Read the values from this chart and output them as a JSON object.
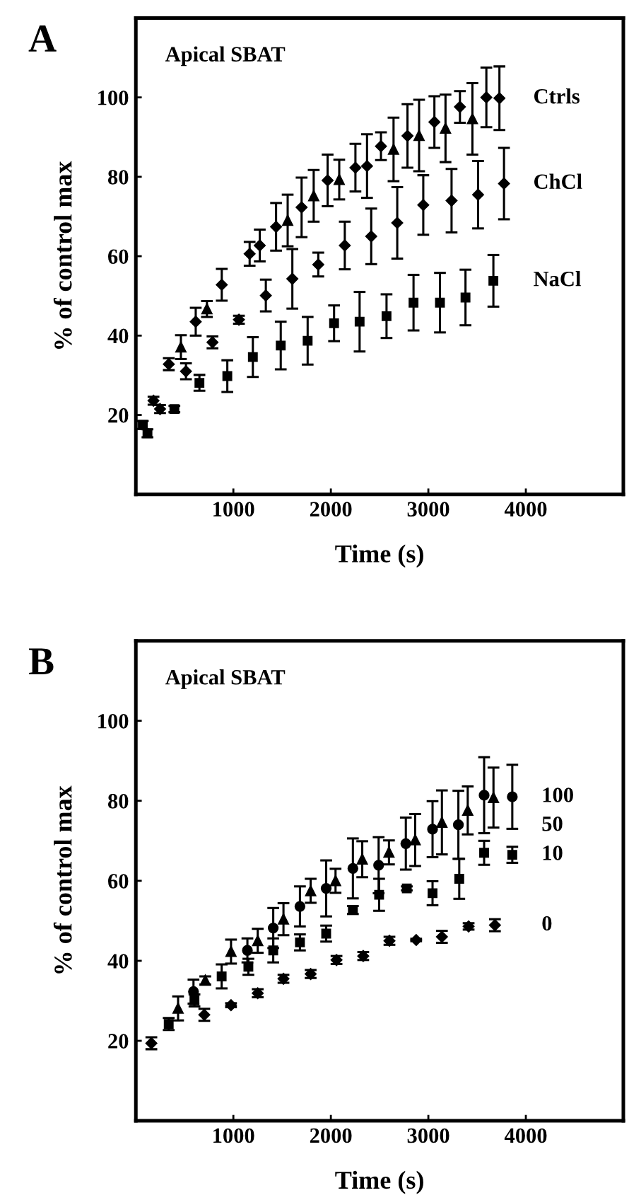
{
  "chart_data": [
    {
      "type": "scatter",
      "title": "A",
      "xlabel": "Time (s)",
      "ylabel": "% of control max",
      "annotations": [
        "Apical SBAT"
      ],
      "xlim": [
        0,
        5000
      ],
      "ylim": [
        0,
        120
      ],
      "xticks": [
        1000,
        2000,
        3000,
        4000
      ],
      "yticks": [
        20,
        40,
        60,
        80,
        100
      ],
      "grid": false,
      "legend": false,
      "series": [
        {
          "name": "Ctrls",
          "color": "#000000",
          "marker": "diamond",
          "x": [
            181,
            338,
            614,
            881,
            1167,
            1271,
            1438,
            1700,
            1967,
            2252,
            2371,
            2514,
            2786,
            3062,
            3324,
            3595,
            3729
          ],
          "values": [
            23.6,
            32.8,
            43.5,
            52.8,
            60.6,
            62.7,
            67.4,
            72.3,
            79.1,
            82.3,
            82.7,
            87.7,
            90.3,
            93.8,
            97.6,
            100,
            99.8
          ],
          "errors": [
            1,
            1.5,
            3.5,
            4,
            3,
            4,
            6,
            7.5,
            6.5,
            6,
            8,
            3.5,
            8,
            6.5,
            4,
            7.5,
            8
          ]
        },
        {
          "color": "#000000",
          "marker": "triangle",
          "x": [
            462,
            729,
            1557,
            1824,
            2086,
            2643,
            2905,
            3176,
            3452
          ],
          "values": [
            37.1,
            46.7,
            69,
            75.2,
            79.3,
            86.9,
            90.4,
            92.2,
            94.6
          ],
          "errors": [
            3,
            2,
            6.5,
            6.5,
            5,
            8,
            9,
            8.5,
            9
          ]
        },
        {
          "name": "ChCl",
          "color": "#000000",
          "marker": "diamond",
          "x": [
            248,
            514,
            786,
            1057,
            1333,
            1605,
            1871,
            2143,
            2414,
            2681,
            2948,
            3238,
            3510,
            3776
          ],
          "values": [
            21.5,
            31,
            38.3,
            44,
            50.1,
            54.3,
            57.9,
            62.7,
            65,
            68.4,
            72.9,
            74,
            75.5,
            78.3
          ],
          "errors": [
            1,
            2,
            1.5,
            1,
            4,
            7.5,
            3,
            6,
            7,
            9,
            7.5,
            8,
            8.5,
            9
          ]
        },
        {
          "name": "NaCl",
          "color": "#000000",
          "marker": "square",
          "x": [
            71,
            119,
            395,
            652,
            938,
            1200,
            1486,
            1762,
            2033,
            2295,
            2571,
            2848,
            3119,
            3381,
            3667
          ],
          "values": [
            17.5,
            15.4,
            21.5,
            28.1,
            29.8,
            34.6,
            37.5,
            38.7,
            43.1,
            43.5,
            44.9,
            48.3,
            48.3,
            49.6,
            53.8
          ],
          "errors": [
            1,
            1,
            0.8,
            2,
            4,
            5,
            6,
            6,
            4.5,
            7.5,
            5.5,
            7,
            7.5,
            7,
            6.5
          ]
        }
      ]
    },
    {
      "type": "scatter",
      "title": "B",
      "xlabel": "Time (s)",
      "ylabel": "% of control max",
      "annotations": [
        "Apical SBAT"
      ],
      "xlim": [
        0,
        5000
      ],
      "ylim": [
        0,
        120
      ],
      "xticks": [
        1000,
        2000,
        3000,
        4000
      ],
      "yticks": [
        20,
        40,
        60,
        80,
        100
      ],
      "grid": false,
      "legend": false,
      "series": [
        {
          "name": "100",
          "color": "#000000",
          "marker": "circle",
          "x": [
            591,
            1144,
            1409,
            1683,
            1952,
            2226,
            2490,
            2769,
            3043,
            3308,
            3572,
            3861
          ],
          "values": [
            32.3,
            42.6,
            48.2,
            53.6,
            58.1,
            63.1,
            63.9,
            69.3,
            72.9,
            74,
            81.4,
            81
          ],
          "errors": [
            3,
            3,
            5,
            5,
            7,
            7.5,
            7,
            6.5,
            7,
            8.5,
            9.5,
            8
          ]
        },
        {
          "name": "50",
          "color": "#000000",
          "marker": "triangle",
          "x": [
            433,
            712,
            976,
            1250,
            1514,
            1793,
            2048,
            2322,
            2596,
            2865,
            3139,
            3404,
            3668
          ],
          "values": [
            28.1,
            35.1,
            42.3,
            45,
            50.4,
            57.5,
            60,
            65.4,
            67.1,
            70.2,
            74.6,
            77.6,
            80.8
          ],
          "errors": [
            3,
            1,
            3,
            3,
            4,
            3,
            3,
            4.5,
            3,
            6.5,
            8,
            6,
            7.5
          ]
        },
        {
          "name": "10",
          "color": "#000000",
          "marker": "square",
          "x": [
            337,
            601,
            880,
            1154,
            1409,
            1683,
            1952,
            2226,
            2495,
            2779,
            3043,
            3317,
            3572,
            3861
          ],
          "values": [
            24.2,
            30.1,
            36.1,
            38.5,
            42.6,
            44.6,
            46.8,
            52.7,
            56.5,
            58.1,
            56.9,
            60.5,
            67,
            66.5
          ],
          "errors": [
            1.5,
            1.5,
            3,
            2,
            3,
            2,
            2,
            1,
            4,
            0.5,
            3,
            5,
            3,
            2
          ]
        },
        {
          "name": "0",
          "color": "#000000",
          "marker": "diamond",
          "x": [
            159,
            702,
            976,
            1250,
            1514,
            1793,
            2058,
            2332,
            2601,
            2875,
            3139,
            3413,
            3683
          ],
          "values": [
            19.4,
            26.5,
            28.9,
            31.9,
            35.5,
            36.7,
            40.2,
            41.2,
            45,
            45.2,
            46,
            48.6,
            48.9
          ],
          "errors": [
            1.5,
            1.5,
            0.5,
            1,
            1,
            1,
            1,
            1,
            1,
            0.3,
            1.5,
            0.8,
            1.5
          ]
        }
      ]
    }
  ]
}
